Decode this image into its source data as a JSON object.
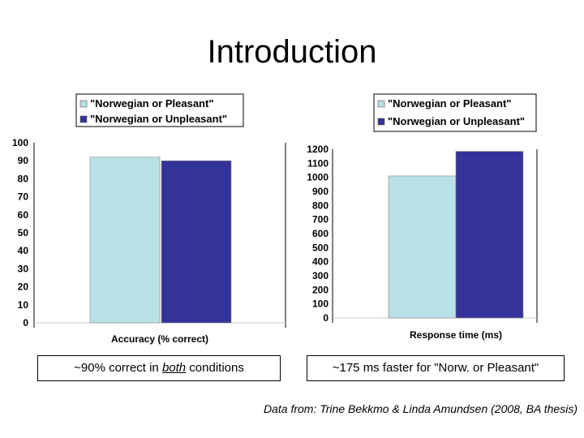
{
  "slide": {
    "title": "Introduction",
    "caption_left": {
      "before": "~90% correct in ",
      "emphasis": "both",
      "after": " conditions"
    },
    "caption_right": "~175 ms faster for \"Norw. or Pleasant\"",
    "credit": "Data from: Trine Bekkmo & Linda Amundsen (2008, BA thesis)"
  },
  "colors": {
    "pleasant": "#B9E0E4",
    "unpleasant": "#333399"
  },
  "chart_data": [
    {
      "type": "bar",
      "categories": [
        ""
      ],
      "series": [
        {
          "name": "\"Norwegian or Pleasant\"",
          "values": [
            92
          ]
        },
        {
          "name": "\"Norwegian or Unpleasant\"",
          "values": [
            90
          ]
        }
      ],
      "xlabel": "Accuracy (% correct)",
      "ylabel": "",
      "ylim": [
        0,
        100
      ],
      "yticks": [
        0,
        10,
        20,
        30,
        40,
        50,
        60,
        70,
        80,
        90,
        100
      ],
      "grid": false,
      "legend": "top"
    },
    {
      "type": "bar",
      "categories": [
        ""
      ],
      "series": [
        {
          "name": "\"Norwegian or Pleasant\"",
          "values": [
            1010
          ]
        },
        {
          "name": "\"Norwegian or Unpleasant\"",
          "values": [
            1185
          ]
        }
      ],
      "xlabel": "Response time (ms)",
      "ylabel": "",
      "ylim": [
        0,
        1200
      ],
      "yticks": [
        0,
        100,
        200,
        300,
        400,
        500,
        600,
        700,
        800,
        900,
        1000,
        1100,
        1200
      ],
      "grid": false,
      "legend": "top"
    }
  ]
}
